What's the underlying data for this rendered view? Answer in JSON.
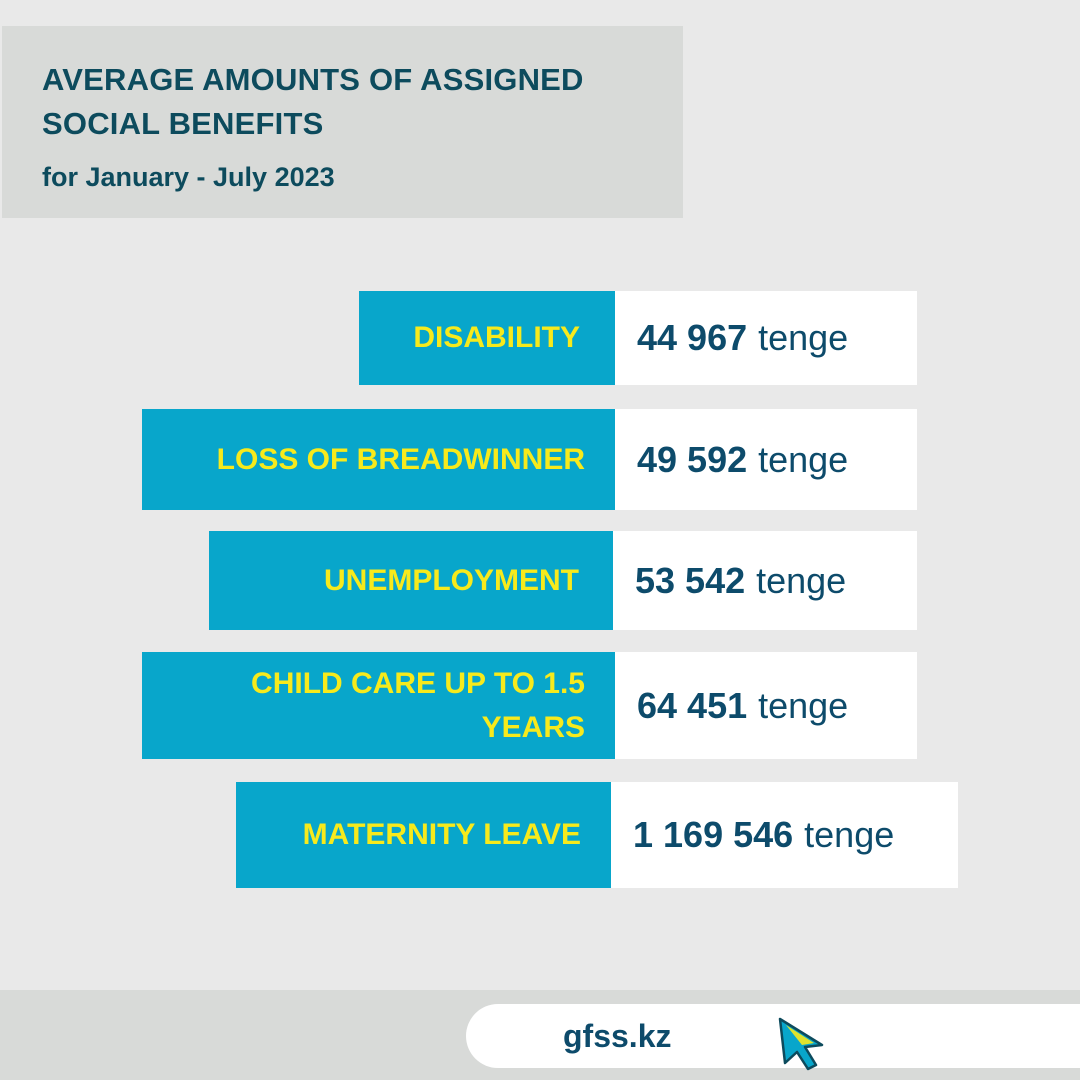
{
  "header": {
    "title": "AVERAGE AMOUNTS OF ASSIGNED SOCIAL BENEFITS",
    "subtitle": "for January - July 2023"
  },
  "benefits": [
    {
      "label": "DISABILITY",
      "amount": "44 967",
      "unit": "tenge"
    },
    {
      "label": "LOSS OF BREADWINNER",
      "amount": "49 592",
      "unit": "tenge"
    },
    {
      "label": "UNEMPLOYMENT",
      "amount": "53 542",
      "unit": "tenge"
    },
    {
      "label": "CHILD CARE UP TO 1.5 YEARS",
      "amount": "64 451",
      "unit": "tenge"
    },
    {
      "label": "MATERNITY LEAVE",
      "amount": "1 169 546",
      "unit": "tenge"
    }
  ],
  "footer": {
    "site": "gfss.kz",
    "icon": "cursor-arrow-icon"
  },
  "colors": {
    "accent_blue": "#08a6cb",
    "label_yellow": "#f7ea1c",
    "text_navy": "#0d4b6b",
    "panel_gray": "#d8dad8",
    "background": "#e9e9e9"
  }
}
